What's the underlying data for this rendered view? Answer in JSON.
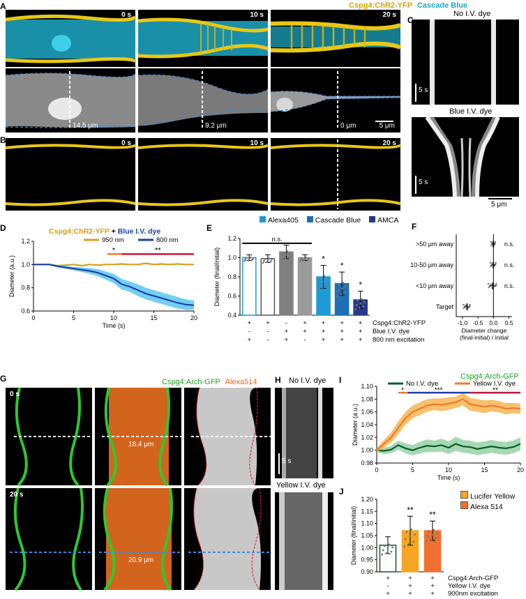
{
  "panels": {
    "A": {
      "label": "A",
      "legend_left": "Cspg4:ChR2-YFP",
      "legend_right": "Cascade Blue",
      "times": [
        "0 s",
        "10 s",
        "20 s"
      ],
      "diameters": [
        "14.5 μm",
        "9.2 μm",
        "0 μm"
      ],
      "scale": "5 μm",
      "colors": {
        "yfp": "#e8c817",
        "cascade": "#18b4c8",
        "outline": "#3a8be0"
      }
    },
    "B": {
      "label": "B",
      "times": [
        "0 s",
        "10 s",
        "20 s"
      ]
    },
    "C": {
      "label": "C",
      "title_top": "No I.V. dye",
      "title_bottom": "Blue I.V. dye",
      "time_scale": "5 s",
      "space_scale": "5 μm"
    },
    "D": {
      "label": "D",
      "title_part1": "Cspg4:ChR2-YFP",
      "title_part2": " + ",
      "title_part3": "Blue I.V. dye",
      "sig1": "*",
      "sig2": "**"
    },
    "E": {
      "label": "E",
      "legend": [
        "Alexa405",
        "Cascade Blue",
        "AMCA"
      ],
      "ns": "n.s.",
      "stars": [
        "*",
        "*",
        "*"
      ],
      "row_labels": [
        "Cspg4:ChR2-YFP",
        "Blue I.V. dye",
        "800 nm excitation"
      ],
      "rows": [
        [
          "+",
          "+",
          "-",
          "+",
          "+",
          "+",
          "+"
        ],
        [
          "-",
          "-",
          "+",
          "+",
          "+",
          "+",
          "+"
        ],
        [
          "+",
          "-",
          "+",
          "-",
          "+",
          "+",
          "+"
        ]
      ]
    },
    "F": {
      "label": "F",
      "categories": [
        ">50 μm away",
        "10-50 μm away",
        "<10 μm away",
        "Target"
      ],
      "ns": [
        "n.s.",
        "n.s.",
        "n.s."
      ],
      "xlabel_line1": "Diameter change",
      "xlabel_line2": "(final-initial) / initial",
      "ticks": [
        "-1.0",
        "-0.5",
        "0.0",
        "0.5"
      ]
    },
    "G": {
      "label": "G",
      "legend_left": "Cspg4:Arch-GFP",
      "legend_right": "Alexa514",
      "times": [
        "0 s",
        "20 s"
      ],
      "diameters": [
        "18.4 μm",
        "20.9 μm"
      ]
    },
    "H": {
      "label": "H",
      "title_top": "No I.V. dye",
      "title_bottom": "Yellow I.V. dye",
      "time_scale": "5 s"
    },
    "I": {
      "label": "I",
      "title": "Cspg4:Arch-GFP",
      "sig": [
        "*",
        "***",
        "**"
      ]
    },
    "J": {
      "label": "J",
      "legend": [
        "Lucifer Yellow",
        "Alexa 514"
      ],
      "stars": [
        "**",
        "**"
      ],
      "row_labels": [
        "Cspg4:Arch-GFP",
        "Yellow I.V. dye",
        "900nm excitation"
      ],
      "rows": [
        [
          "+",
          "+",
          "+"
        ],
        [
          "-",
          "+",
          "+"
        ],
        [
          "+",
          "+",
          "+"
        ]
      ]
    }
  },
  "chart_data": [
    {
      "id": "D",
      "type": "line",
      "xlabel": "Time (s)",
      "ylabel": "Diameter (a.u.)",
      "xlim": [
        0,
        20
      ],
      "ylim": [
        0.6,
        1.2
      ],
      "xticks": [
        0,
        5,
        10,
        15,
        20
      ],
      "yticks": [
        0.6,
        0.8,
        1.0,
        1.2
      ],
      "series": [
        {
          "name": "950 nm",
          "color": "#d4a017",
          "x": [
            0,
            1,
            2,
            3,
            4,
            5,
            6,
            7,
            8,
            9,
            10,
            11,
            12,
            13,
            14,
            15,
            16,
            17,
            18,
            19,
            20
          ],
          "y": [
            1.0,
            1.0,
            1.0,
            0.99,
            0.995,
            1.0,
            0.99,
            1.0,
            0.995,
            1.0,
            1.0,
            1.005,
            1.0,
            1.0,
            1.01,
            1.0,
            1.005,
            1.0,
            1.005,
            1.0,
            1.0
          ]
        },
        {
          "name": "800 nm",
          "color": "#1e3fa8",
          "x": [
            0,
            1,
            2,
            3,
            4,
            5,
            6,
            7,
            8,
            9,
            10,
            11,
            12,
            13,
            14,
            15,
            16,
            17,
            18,
            19,
            20
          ],
          "y": [
            1.0,
            1.0,
            1.0,
            0.985,
            0.975,
            0.965,
            0.955,
            0.945,
            0.93,
            0.905,
            0.88,
            0.83,
            0.81,
            0.78,
            0.75,
            0.73,
            0.71,
            0.69,
            0.67,
            0.655,
            0.65
          ],
          "err": [
            0.005,
            0.005,
            0.008,
            0.01,
            0.012,
            0.015,
            0.02,
            0.025,
            0.03,
            0.035,
            0.04,
            0.045,
            0.045,
            0.05,
            0.05,
            0.05,
            0.05,
            0.05,
            0.05,
            0.045,
            0.04
          ]
        }
      ]
    },
    {
      "id": "E",
      "type": "bar",
      "ylabel": "Diameter (final/initial)",
      "ylim": [
        0.4,
        1.2
      ],
      "yticks": [
        0.4,
        0.6,
        0.8,
        1.0,
        1.2
      ],
      "values": [
        1.0,
        0.99,
        1.06,
        1.0,
        0.8,
        0.73,
        0.56
      ],
      "errors": [
        0.03,
        0.04,
        0.07,
        0.03,
        0.12,
        0.12,
        0.09
      ],
      "fills": [
        "#ffffff",
        "#ffffff",
        "#808080",
        "#9b9b9b",
        "#1e9bd7",
        "#1f6fb5",
        "#26388f"
      ],
      "strokes": [
        "#1e9bd7",
        "#555555",
        "#808080",
        "#9b9b9b",
        "#1e9bd7",
        "#1f6fb5",
        "#26388f"
      ]
    },
    {
      "id": "F",
      "type": "scatter",
      "xlim": [
        -1.2,
        0.6
      ],
      "means": [
        0.0,
        0.0,
        -0.02,
        -0.85
      ],
      "sd": [
        0.06,
        0.08,
        0.12,
        0.1
      ]
    },
    {
      "id": "I",
      "type": "line",
      "xlabel": "Time (s)",
      "ylabel": "Diameter (a.u.)",
      "xlim": [
        0,
        20
      ],
      "ylim": [
        0.98,
        1.1
      ],
      "xticks": [
        0,
        5,
        10,
        15,
        20
      ],
      "yticks": [
        0.98,
        1.0,
        1.02,
        1.04,
        1.06,
        1.08,
        1.1
      ],
      "series": [
        {
          "name": "No I.V. dye",
          "color": "#0a5a2a",
          "x": [
            0,
            1,
            2,
            3,
            4,
            5,
            6,
            7,
            8,
            9,
            10,
            11,
            12,
            13,
            14,
            15,
            16,
            17,
            18,
            19,
            20
          ],
          "y": [
            1.0,
            0.999,
            1.001,
            1.008,
            1.003,
            1.0,
            1.004,
            1.007,
            1.006,
            1.008,
            1.004,
            1.01,
            1.006,
            1.005,
            1.002,
            1.004,
            1.006,
            1.004,
            1.003,
            1.005,
            1.01
          ],
          "err": [
            0.003,
            0.005,
            0.006,
            0.007,
            0.008,
            0.008,
            0.009,
            0.01,
            0.009,
            0.01,
            0.01,
            0.011,
            0.01,
            0.01,
            0.01,
            0.01,
            0.01,
            0.01,
            0.01,
            0.01,
            0.01
          ]
        },
        {
          "name": "Yellow I.V. dye",
          "color": "#f07a2a",
          "x": [
            0,
            1,
            2,
            3,
            4,
            5,
            6,
            7,
            8,
            9,
            10,
            11,
            12,
            13,
            14,
            15,
            16,
            17,
            18,
            19,
            20
          ],
          "y": [
            1.0,
            1.01,
            1.02,
            1.035,
            1.05,
            1.06,
            1.065,
            1.07,
            1.072,
            1.071,
            1.073,
            1.075,
            1.08,
            1.072,
            1.07,
            1.068,
            1.07,
            1.068,
            1.065,
            1.066,
            1.065
          ],
          "err": [
            0.003,
            0.006,
            0.008,
            0.01,
            0.01,
            0.01,
            0.01,
            0.01,
            0.009,
            0.01,
            0.01,
            0.009,
            0.01,
            0.01,
            0.01,
            0.01,
            0.009,
            0.009,
            0.009,
            0.008,
            0.008
          ]
        }
      ]
    },
    {
      "id": "J",
      "type": "bar",
      "ylabel": "Diameter (final/initial)",
      "ylim": [
        0.9,
        1.2
      ],
      "yticks": [
        0.9,
        0.95,
        1.0,
        1.05,
        1.1,
        1.15,
        1.2
      ],
      "values": [
        1.01,
        1.07,
        1.07
      ],
      "errors": [
        0.035,
        0.06,
        0.04
      ],
      "fills": [
        "#ffffff",
        "#f5a623",
        "#f07030"
      ],
      "strokes": [
        "#0a5a2a",
        "#f5a623",
        "#f07030"
      ]
    }
  ]
}
